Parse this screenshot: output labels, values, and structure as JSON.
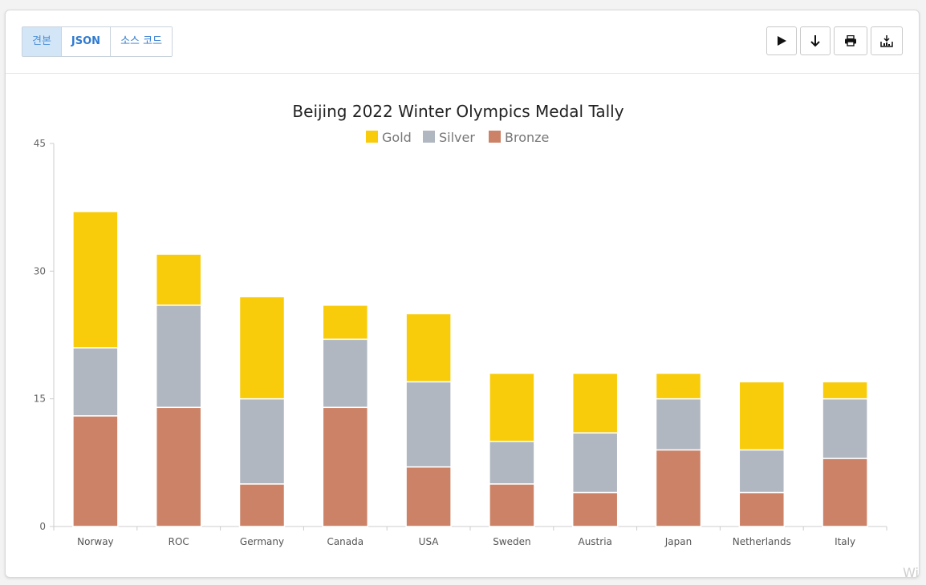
{
  "tabs": [
    {
      "label": "견본",
      "active": true
    },
    {
      "label": "JSON",
      "active": false
    },
    {
      "label": "소스 코드",
      "active": false
    }
  ],
  "actions": [
    {
      "icon": "play-icon"
    },
    {
      "icon": "download-arrow-icon"
    },
    {
      "icon": "print-icon"
    },
    {
      "icon": "export-icon"
    }
  ],
  "watermark": "Wi",
  "chart_data": {
    "type": "bar",
    "stacked": true,
    "title": "Beijing 2022 Winter Olympics Medal Tally",
    "categories": [
      "Norway",
      "ROC",
      "Germany",
      "Canada",
      "USA",
      "Sweden",
      "Austria",
      "Japan",
      "Netherlands",
      "Italy"
    ],
    "series": [
      {
        "name": "Bronze",
        "color": "#cc8266",
        "values": [
          13,
          14,
          5,
          14,
          7,
          5,
          4,
          9,
          4,
          8
        ]
      },
      {
        "name": "Silver",
        "color": "#b0b7c0",
        "values": [
          8,
          12,
          10,
          8,
          10,
          5,
          7,
          6,
          5,
          7
        ]
      },
      {
        "name": "Gold",
        "color": "#f8cc0b",
        "values": [
          16,
          6,
          12,
          4,
          8,
          8,
          7,
          3,
          8,
          2
        ]
      }
    ],
    "legend": [
      "Gold",
      "Silver",
      "Bronze"
    ],
    "legend_position": "top",
    "ylim": [
      0,
      45
    ],
    "yticks": [
      0,
      15,
      30,
      45
    ],
    "grid": false
  }
}
